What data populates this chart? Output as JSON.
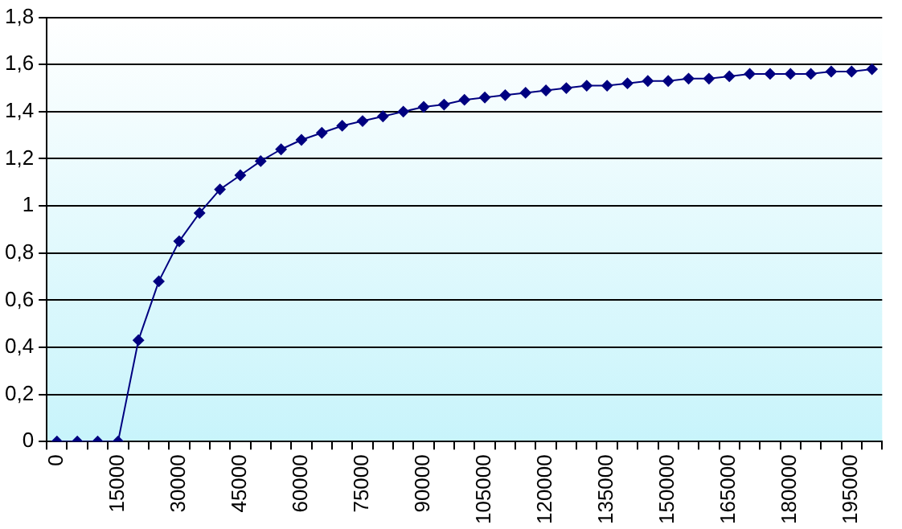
{
  "chart_data": {
    "type": "line",
    "categories": [
      "0",
      null,
      null,
      "15000",
      null,
      null,
      "30000",
      null,
      null,
      "45000",
      null,
      null,
      "60000",
      null,
      null,
      "75000",
      null,
      null,
      "90000",
      null,
      null,
      "105000",
      null,
      null,
      "120000",
      null,
      null,
      "135000",
      null,
      null,
      "150000",
      null,
      null,
      "165000",
      null,
      null,
      "180000",
      null,
      null,
      "195000",
      null
    ],
    "series": [
      {
        "color": "#000080",
        "values": [
          0,
          0,
          0,
          0,
          0.43,
          0.68,
          0.85,
          0.97,
          1.07,
          1.13,
          1.19,
          1.24,
          1.28,
          1.31,
          1.34,
          1.36,
          1.38,
          1.4,
          1.42,
          1.43,
          1.45,
          1.46,
          1.47,
          1.48,
          1.49,
          1.5,
          1.51,
          1.51,
          1.52,
          1.53,
          1.53,
          1.54,
          1.54,
          1.55,
          1.56,
          1.56,
          1.56,
          1.56,
          1.57,
          1.57,
          1.58
        ]
      }
    ],
    "ylim": [
      0,
      1.8
    ],
    "yticks": [
      0,
      {
        "value": 0.2,
        "label": "0,2"
      },
      {
        "value": 0.4,
        "label": "0,4"
      },
      {
        "value": 0.6,
        "label": "0,6"
      },
      {
        "value": 0.8,
        "label": "0,8"
      },
      1,
      {
        "value": 1.2,
        "label": "1,2"
      },
      {
        "value": 1.4,
        "label": "1,4"
      },
      {
        "value": 1.6,
        "label": "1,6"
      },
      {
        "value": 1.8,
        "label": "1,8"
      }
    ],
    "grid": "y",
    "legend": false,
    "marker": "diamond",
    "line_style": "solid"
  }
}
